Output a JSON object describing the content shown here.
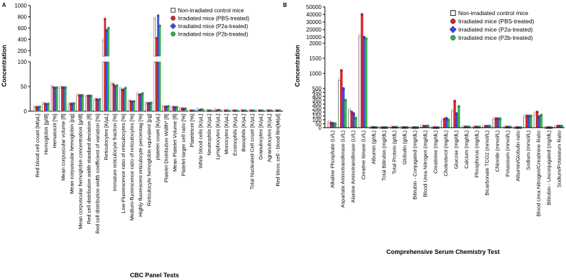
{
  "colors": {
    "control": "#ffffff",
    "pbs": "#d9242b",
    "p2a": "#3b4bd9",
    "p2b": "#35b24a",
    "axis": "#000000"
  },
  "chart_data": [
    {
      "panel_letter": "A",
      "type": "bar",
      "ylabel": "Concentration",
      "xlabel": "CBC Panel Tests",
      "broken_axis": true,
      "ylim_lower": [
        0,
        100
      ],
      "ylim_upper": [
        100,
        1000
      ],
      "yticks_lower": [
        "0",
        "50",
        "100"
      ],
      "yticks_upper": [
        "200",
        "400",
        "600",
        "800",
        "1000"
      ],
      "legend_position": "top-right",
      "series": [
        {
          "name": "Non-irradiated control mice",
          "color_key": "control"
        },
        {
          "name": "Irradiated mice (PBS-treated)",
          "color_key": "pbs"
        },
        {
          "name": "Irradiated mice (P2a-treated)",
          "color_key": "p2a"
        },
        {
          "name": "Irradiated mice (P2b-treated)",
          "color_key": "p2b"
        }
      ],
      "categories": [
        "Red blood cell count [M/µL]",
        "Hemoglobin [g/dl]",
        "Hematocrit [%]",
        "Mean corpuscular volume [fl]",
        "Mean corpuscular hemoglobin [pg]",
        "Mean corpuscular hemoglobin concentration [g/dl]",
        "Red cell distribution width standard deviation [fl]",
        "Red cell distribution width coefficient of variation [%]",
        "Reticulocytes [K/µL]",
        "Immature reticulocyte fraction [%]",
        "Low-Fluorescence ratio of reticulocytes [%]",
        "Medium-fluorescence ratio of reticulocytes [%]",
        "Highly fluorescent reticulocyte percentag [%]",
        "Reticulocyte hemoglobin equivalent [pg]",
        "platelet count [K/µL]",
        "Platelet Distribution Width* [fl]",
        "Mean Platelet Volume [fl]",
        "Platelet-larger cell ratio [%]",
        "Plateletcrit [%]",
        "White blood cells [K/µL]",
        "Neutrophils [K/µL]",
        "Lymphocytes [K/µL]",
        "Monocytes [K/µL]",
        "Eosinophils [K/µL]",
        "Basophils [K/µL]",
        "Total Nucleated Cell count [K/µL]",
        "Granulocytes [K/µL]",
        "Agranulocytes [K/µL]",
        "Red blooc cell - blood film[M/µl]"
      ],
      "values": [
        [
          9,
          8,
          8,
          9
        ],
        [
          16,
          15,
          14,
          15
        ],
        [
          51,
          48,
          47,
          48
        ],
        [
          49,
          48,
          48,
          48
        ],
        [
          15,
          15,
          15,
          16
        ],
        [
          33,
          32,
          32,
          32
        ],
        [
          30,
          31,
          31,
          31
        ],
        [
          24,
          24,
          23,
          24
        ],
        [
          390,
          760,
          560,
          600
        ],
        [
          57,
          54,
          50,
          52
        ],
        [
          47,
          43,
          44,
          47
        ],
        [
          22,
          20,
          19,
          20
        ],
        [
          36,
          33,
          34,
          36
        ],
        [
          17,
          16,
          16,
          17
        ],
        [
          780,
          420,
          820,
          640
        ],
        [
          10,
          9,
          9,
          10
        ],
        [
          9,
          8,
          8,
          8
        ],
        [
          6,
          5,
          5,
          5
        ],
        [
          1,
          1,
          1,
          1
        ],
        [
          4,
          2,
          3,
          3
        ],
        [
          1,
          1,
          1,
          1
        ],
        [
          3,
          1,
          2,
          2
        ],
        [
          1,
          1,
          1,
          1
        ],
        [
          1,
          1,
          1,
          1
        ],
        [
          1,
          1,
          1,
          1
        ],
        [
          1,
          1,
          1,
          1
        ],
        [
          1,
          1,
          1,
          1
        ],
        [
          1,
          1,
          1,
          1
        ],
        [
          1,
          1,
          1,
          1
        ]
      ]
    },
    {
      "panel_letter": "B",
      "type": "bar",
      "ylabel": "Concentration",
      "xlabel": "Comprehensive Serum Chemistry Test",
      "broken_axis": true,
      "ylim_lower": [
        0,
        500
      ],
      "ylim_middle": [
        500,
        2000
      ],
      "ylim_upper": [
        2000,
        50000
      ],
      "yticks_lower": [
        "0",
        "50",
        "100",
        "150",
        "200",
        "250",
        "300",
        "350",
        "400",
        "450",
        "500"
      ],
      "yticks_middle": [
        "1000",
        "1500",
        "2000"
      ],
      "yticks_upper": [
        "10000",
        "20000",
        "30000",
        "40000",
        "50000"
      ],
      "legend_position": "top-right",
      "series": [
        {
          "name": "Non-irradiated control mice",
          "color_key": "control"
        },
        {
          "name": "Irradiated mice (PBS-treated)",
          "color_key": "pbs"
        },
        {
          "name": "Irradiated mice (P2a-treated)",
          "color_key": "p2a"
        },
        {
          "name": "Irradiated mice (P2b-treated)",
          "color_key": "p2b"
        }
      ],
      "categories": [
        "Alkaline Phosphate (U/L)",
        "Aspartate Aminotransferase (U/L)",
        "Alanine Aminotransferase (U/L)",
        "Creatine kinase (U/L)",
        "Albumin (g/dL)",
        "Total Bilirubin (mg/dL)",
        "Total Protein (g/dL)",
        "Globulin (g/dL)",
        "Bilirubin - Conjugated (mg/dL)",
        "Blood Urea Nitrogen (mg/dL)",
        "Creatinine (mg/dL)",
        "Cholesterol (mg/dL)",
        "Glucose (mg/dL)",
        "Calcium (mg/dL)",
        "Phosphorus (mg/dL)",
        "Bicarbonate TCO2 (mmol/L)",
        "Chloride (mmol/L)",
        "Potassium (mmol/L)",
        "Albumin/Globulin ratio",
        "Sodium (mmol/L)",
        "Blood Urea Nitrogen/Creatinine Ratio",
        "Bilirubin - Unconjugated (mg/dL)",
        "Sodium/Potassium Ratio"
      ],
      "values": [
        [
          75,
          60,
          55,
          50
        ],
        [
          800,
          1100,
          500,
          350
        ],
        [
          230,
          200,
          180,
          120
        ],
        [
          12000,
          40000,
          10000,
          8000
        ],
        [
          3,
          3,
          3,
          3
        ],
        [
          1,
          1,
          1,
          1
        ],
        [
          5,
          5,
          5,
          5
        ],
        [
          2,
          2,
          2,
          2
        ],
        [
          1,
          1,
          1,
          1
        ],
        [
          22,
          20,
          18,
          21
        ],
        [
          1,
          1,
          1,
          1
        ],
        [
          95,
          110,
          120,
          100
        ],
        [
          220,
          340,
          180,
          270
        ],
        [
          9,
          9,
          9,
          9
        ],
        [
          7,
          8,
          7,
          8
        ],
        [
          20,
          18,
          19,
          20
        ],
        [
          115,
          115,
          115,
          115
        ],
        [
          8,
          7,
          7,
          8
        ],
        [
          1,
          1,
          1,
          1
        ],
        [
          150,
          150,
          148,
          150
        ],
        [
          180,
          200,
          140,
          160
        ],
        [
          1,
          1,
          1,
          1
        ],
        [
          19,
          20,
          20,
          19
        ]
      ]
    }
  ]
}
